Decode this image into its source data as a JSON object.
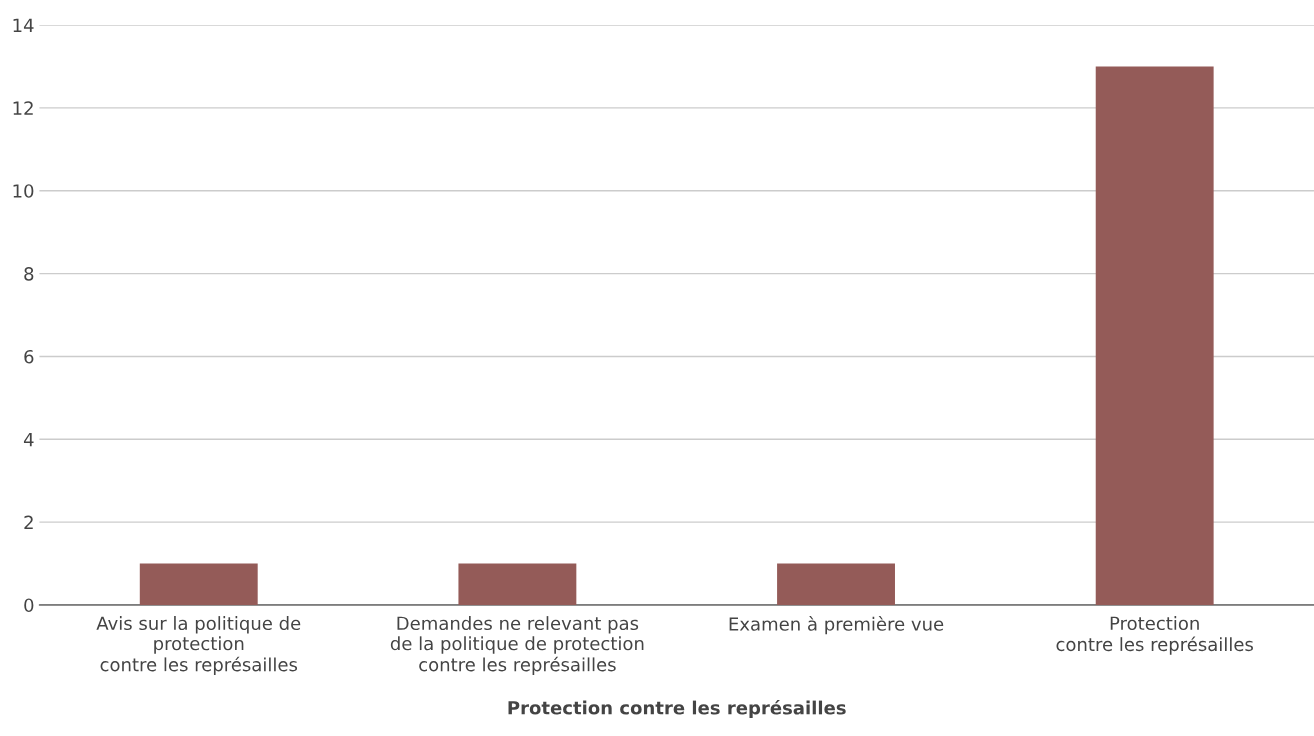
{
  "chart_data": {
    "type": "bar",
    "xlabel": "Protection contre les représailles",
    "categories": [
      "Avis sur la politique de\nprotection\ncontre les représailles",
      "Demandes ne relevant pas\nde la politique de protection\ncontre les représailles",
      "Examen à première vue",
      "Protection\ncontre les représailles"
    ],
    "values": [
      1,
      1,
      1,
      13
    ],
    "color": "#945b58",
    "ylim": [
      0,
      14
    ],
    "yticks": [
      0,
      2,
      4,
      6,
      8,
      10,
      12,
      14
    ],
    "grid": "y"
  }
}
